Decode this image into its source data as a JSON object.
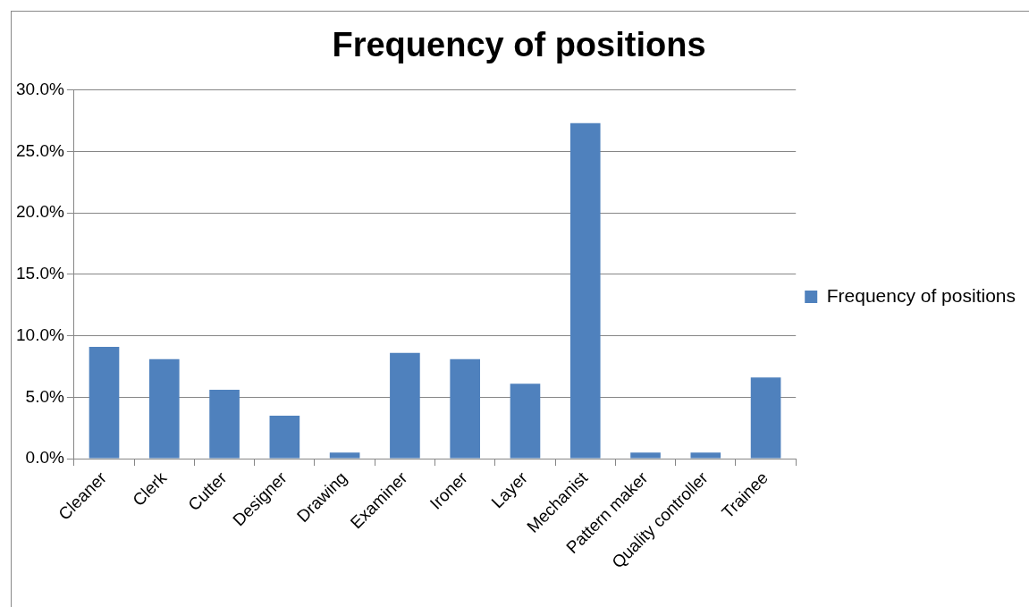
{
  "chart_data": {
    "type": "bar",
    "title": "Frequency of positions",
    "categories": [
      "Cleaner",
      "Clerk",
      "Cutter",
      "Designer",
      "Drawing",
      "Examiner",
      "Ironer",
      "Layer",
      "Mechanist",
      "Pattern maker",
      "Quality controller",
      "Trainee"
    ],
    "series": [
      {
        "name": "Frequency of positions",
        "color": "#4f81bd",
        "values": [
          9.1,
          8.1,
          5.6,
          3.5,
          0.5,
          8.6,
          8.1,
          6.1,
          27.3,
          0.5,
          0.5,
          6.6
        ]
      }
    ],
    "ylim": [
      0,
      30
    ],
    "yticks": [
      {
        "value": 0,
        "label": "0.0%"
      },
      {
        "value": 5,
        "label": "5.0%"
      },
      {
        "value": 10,
        "label": "10.0%"
      },
      {
        "value": 15,
        "label": "15.0%"
      },
      {
        "value": 20,
        "label": "20.0%"
      },
      {
        "value": 25,
        "label": "25.0%"
      },
      {
        "value": 30,
        "label": "30.0%"
      }
    ],
    "grid": "y",
    "legend": "right"
  }
}
